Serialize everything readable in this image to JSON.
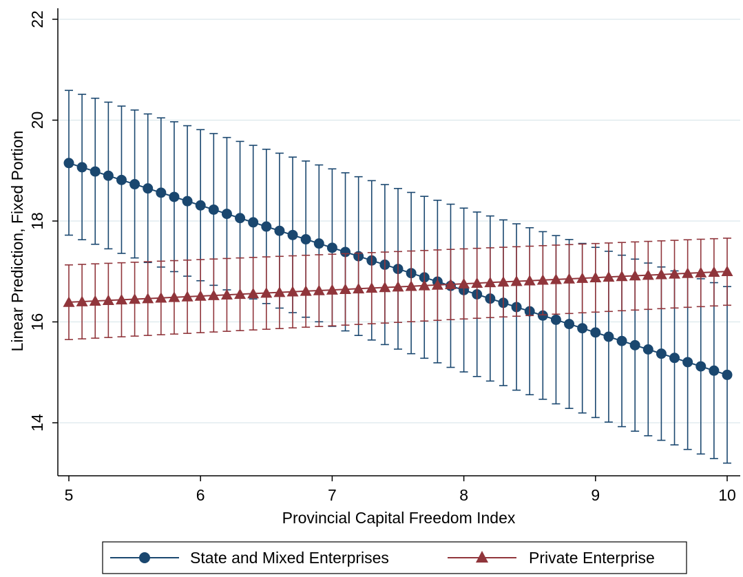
{
  "chart_data": {
    "type": "line",
    "xlabel": "Provincial Capital Freedom Index",
    "ylabel": "Linear Prediction, Fixed Portion",
    "x_ticks": [
      5,
      6,
      7,
      8,
      9,
      10
    ],
    "y_ticks": [
      14,
      16,
      18,
      20,
      22
    ],
    "xlim": [
      5,
      10
    ],
    "ylim": [
      13.0,
      22.2
    ],
    "grid": true,
    "legend_position": "bottom",
    "x": [
      5.0,
      5.1,
      5.2,
      5.3,
      5.4,
      5.5,
      5.6,
      5.7,
      5.8,
      5.9,
      6.0,
      6.1,
      6.2,
      6.3,
      6.4,
      6.5,
      6.6,
      6.7,
      6.8,
      6.9,
      7.0,
      7.1,
      7.2,
      7.3,
      7.4,
      7.5,
      7.6,
      7.7,
      7.8,
      7.9,
      8.0,
      8.1,
      8.2,
      8.3,
      8.4,
      8.5,
      8.6,
      8.7,
      8.8,
      8.9,
      9.0,
      9.1,
      9.2,
      9.3,
      9.4,
      9.5,
      9.6,
      9.7,
      9.8,
      9.9,
      10.0
    ],
    "series": [
      {
        "name": "State and Mixed Enterprises",
        "marker": "circle",
        "color": "#1a476f",
        "start": 19.15,
        "end": 14.95,
        "ci_lower_start": 17.72,
        "ci_lower_end": 13.2,
        "ci_upper_start": 20.59,
        "ci_upper_end": 16.7
      },
      {
        "name": "Private Enterprise",
        "marker": "triangle",
        "color": "#90353b",
        "start": 16.39,
        "end": 17.0,
        "ci_lower_start": 15.65,
        "ci_lower_end": 16.33,
        "ci_upper_start": 17.13,
        "ci_upper_end": 17.66
      }
    ]
  }
}
